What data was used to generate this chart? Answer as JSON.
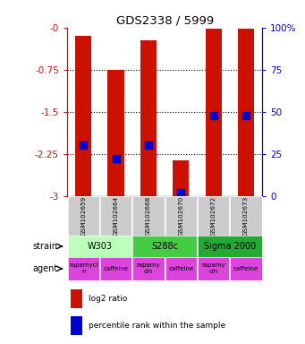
{
  "title": "GDS2338 / 5999",
  "samples": [
    "GSM102659",
    "GSM102664",
    "GSM102668",
    "GSM102670",
    "GSM102672",
    "GSM102673"
  ],
  "log2_top": [
    -0.15,
    -0.75,
    -0.22,
    -2.37,
    -0.02,
    -0.02
  ],
  "log2_bottom": [
    -3.0,
    -3.0,
    -3.0,
    -3.0,
    -3.0,
    -3.0
  ],
  "percentile_values": [
    30,
    22,
    30,
    2,
    48,
    48
  ],
  "ymin": -3.0,
  "ymax": 0.0,
  "yticks": [
    0.0,
    -0.75,
    -1.5,
    -2.25,
    -3.0
  ],
  "ytick_labels": [
    "-0",
    "-0.75",
    "-1.5",
    "-2.25",
    "-3"
  ],
  "right_yticks": [
    0,
    25,
    50,
    75,
    100
  ],
  "right_ytick_labels": [
    "0",
    "25",
    "50",
    "75",
    "100%"
  ],
  "bar_color": "#cc1100",
  "dot_color": "#0000cc",
  "strains": [
    {
      "label": "W303",
      "cols": [
        0,
        1
      ],
      "color": "#bbffbb"
    },
    {
      "label": "S288c",
      "cols": [
        2,
        3
      ],
      "color": "#44cc44"
    },
    {
      "label": "Sigma 2000",
      "cols": [
        4,
        5
      ],
      "color": "#22aa33"
    }
  ],
  "agent_labels": [
    "rapamyci\nn",
    "caffeine",
    "rapamy\ncin",
    "caffeine",
    "rapamy\ncin",
    "caffeine"
  ],
  "agent_color": "#dd44dd",
  "sample_box_color": "#cccccc",
  "legend_log2": "log2 ratio",
  "legend_pct": "percentile rank within the sample",
  "bar_width": 0.5,
  "dot_size": 40
}
